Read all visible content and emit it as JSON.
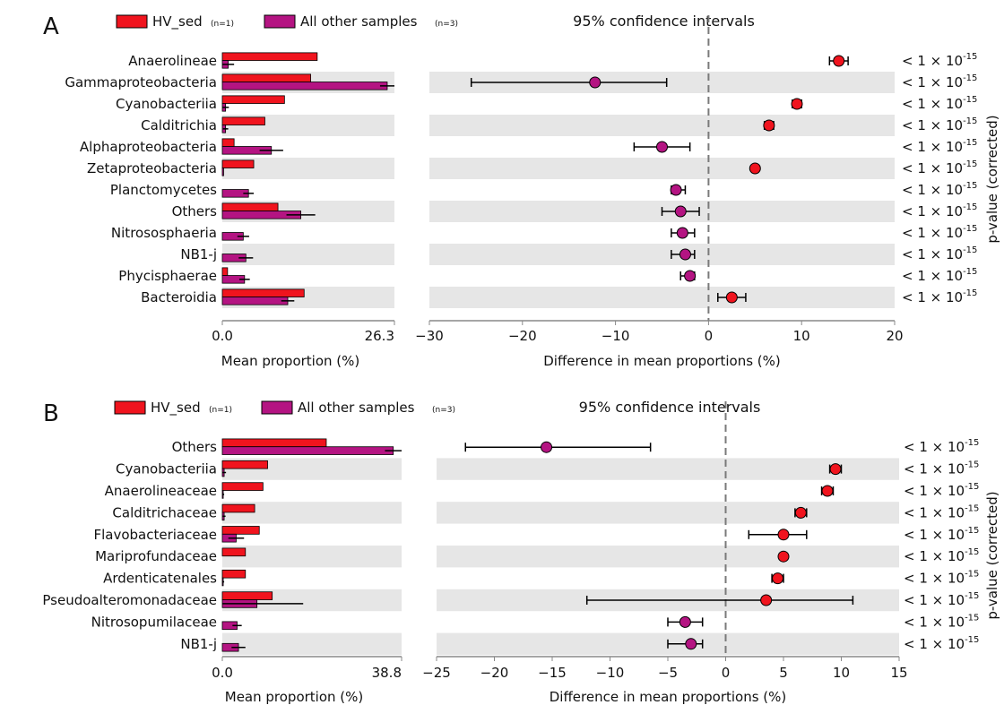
{
  "colors": {
    "hv_sed": "#f0141e",
    "others": "#b41482",
    "stripe": "#e6e6e6",
    "axis": "#888888",
    "dashed": "#7a7a7a"
  },
  "legend": {
    "hv_label": "HV_sed",
    "hv_n": "(n=1)",
    "others_label": "All other samples",
    "others_n": "(n=3)"
  },
  "ci_title": "95% confidence intervals",
  "pvalue_axis_label": "p-value (corrected)",
  "pvalue_base": "< 1 × 10",
  "pvalue_exp": "-15",
  "chart_data": [
    {
      "panel": "A",
      "type": "bar",
      "categories": [
        "Anaerolineae",
        "Gammaproteobacteria",
        "Cyanobacteriia",
        "Calditrichia",
        "Alphaproteobacteria",
        "Zetaproteobacteria",
        "Planctomycetes",
        "Others",
        "Nitrososphaeria",
        "NB1-j",
        "Phycisphaerae",
        "Bacteroidia"
      ],
      "series": [
        {
          "name": "HV_sed",
          "values": [
            14.5,
            13.5,
            9.5,
            6.5,
            1.8,
            4.8,
            0.0,
            8.5,
            0.0,
            0.0,
            0.8,
            12.5
          ]
        },
        {
          "name": "All other samples",
          "values": [
            0.9,
            25.2,
            0.5,
            0.5,
            7.5,
            0.2,
            4.0,
            12.0,
            3.2,
            3.6,
            3.4,
            10.0
          ],
          "err": [
            0.9,
            1.1,
            0.5,
            0.4,
            1.8,
            0.0,
            0.8,
            2.2,
            0.9,
            1.1,
            0.8,
            1.0
          ]
        }
      ],
      "bar_xlim": [
        0.0,
        26.3
      ],
      "bar_xticks": [
        "0.0",
        "26.3"
      ],
      "bar_xlabel": "Mean proportion (%)",
      "diff": [
        14.0,
        -12.2,
        9.5,
        6.5,
        -5.0,
        5.0,
        -3.5,
        -3.0,
        -2.8,
        -2.5,
        -2.0,
        2.5
      ],
      "ci_low": [
        13.0,
        -25.5,
        9.0,
        6.0,
        -8.0,
        5.0,
        -4.0,
        -5.0,
        -4.0,
        -4.0,
        -3.0,
        1.0
      ],
      "ci_high": [
        15.0,
        -4.5,
        10.0,
        7.0,
        -2.0,
        5.0,
        -2.5,
        -1.0,
        -1.5,
        -1.5,
        -1.5,
        4.0
      ],
      "diff_xlim": [
        -30,
        20
      ],
      "diff_xticks": [
        "-30",
        "-20",
        "-10",
        "0",
        "10",
        "20"
      ],
      "diff_xlabel": "Difference in mean proportions (%)"
    },
    {
      "panel": "B",
      "type": "bar",
      "categories": [
        "Others",
        "Cyanobacteriia",
        "Anaerolineaceae",
        "Calditrichaceae",
        "Flavobacteriaceae",
        "Mariprofundaceae",
        "Ardenticatenales",
        "Pseudoalteromonadaceae",
        "Nitrosopumilaceae",
        "NB1-j"
      ],
      "series": [
        {
          "name": "HV_sed",
          "values": [
            22.5,
            9.8,
            8.8,
            7.0,
            8.0,
            5.0,
            5.0,
            10.8,
            0.0,
            0.0
          ]
        },
        {
          "name": "All other samples",
          "values": [
            37.0,
            0.4,
            0.2,
            0.4,
            3.0,
            0.0,
            0.2,
            7.5,
            3.2,
            3.5
          ],
          "err": [
            1.8,
            0.4,
            0.2,
            0.3,
            1.7,
            0.0,
            0.2,
            10.0,
            1.0,
            1.5
          ]
        }
      ],
      "bar_xlim": [
        0.0,
        38.8
      ],
      "bar_xticks": [
        "0.0",
        "38.8"
      ],
      "bar_xlabel": "Mean proportion (%)",
      "diff": [
        -15.5,
        9.5,
        8.8,
        6.5,
        5.0,
        5.0,
        4.5,
        3.5,
        -3.5,
        -3.0
      ],
      "ci_low": [
        -22.5,
        9.0,
        8.3,
        6.0,
        2.0,
        5.0,
        4.0,
        -12.0,
        -5.0,
        -5.0
      ],
      "ci_high": [
        -6.5,
        10.0,
        9.3,
        7.0,
        7.0,
        5.0,
        5.0,
        11.0,
        -2.0,
        -2.0
      ],
      "diff_xlim": [
        -25,
        15
      ],
      "diff_xticks": [
        "-25",
        "-20",
        "-15",
        "-10",
        "-5",
        "0",
        "5",
        "10",
        "15"
      ],
      "diff_xlabel": "Difference in mean proportions (%)"
    }
  ]
}
